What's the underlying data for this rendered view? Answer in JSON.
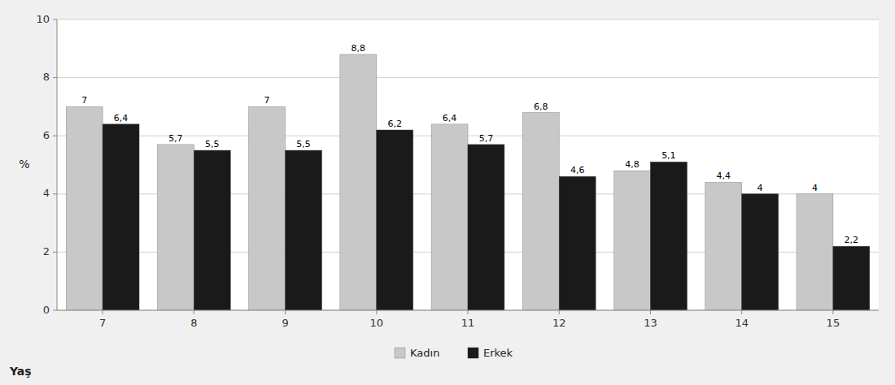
{
  "chart_data": {
    "type": "bar",
    "categories": [
      "7",
      "8",
      "9",
      "10",
      "11",
      "12",
      "13",
      "14",
      "15"
    ],
    "series": [
      {
        "name": "Kadın",
        "color": "#c8c8c8",
        "values": [
          7.0,
          5.7,
          7.0,
          8.8,
          6.4,
          6.8,
          4.8,
          4.4,
          4.0
        ],
        "value_labels": [
          "7",
          "5,7",
          "7",
          "8,8",
          "6,4",
          "6,8",
          "4,8",
          "4,4",
          "4"
        ]
      },
      {
        "name": "Erkek",
        "color": "#1a1a1a",
        "values": [
          6.4,
          5.5,
          5.5,
          6.2,
          5.7,
          4.6,
          5.1,
          4.0,
          2.2
        ],
        "value_labels": [
          "6,4",
          "5,5",
          "5,5",
          "6,2",
          "5,7",
          "4,6",
          "5,1",
          "4",
          "2,2"
        ]
      }
    ],
    "y_label": "%",
    "x_label": "Yaş",
    "ylim": [
      0,
      10
    ],
    "yticks": [
      0,
      2,
      4,
      6,
      8,
      10
    ],
    "grid": true,
    "data_labels": true,
    "legend": "bottom"
  }
}
